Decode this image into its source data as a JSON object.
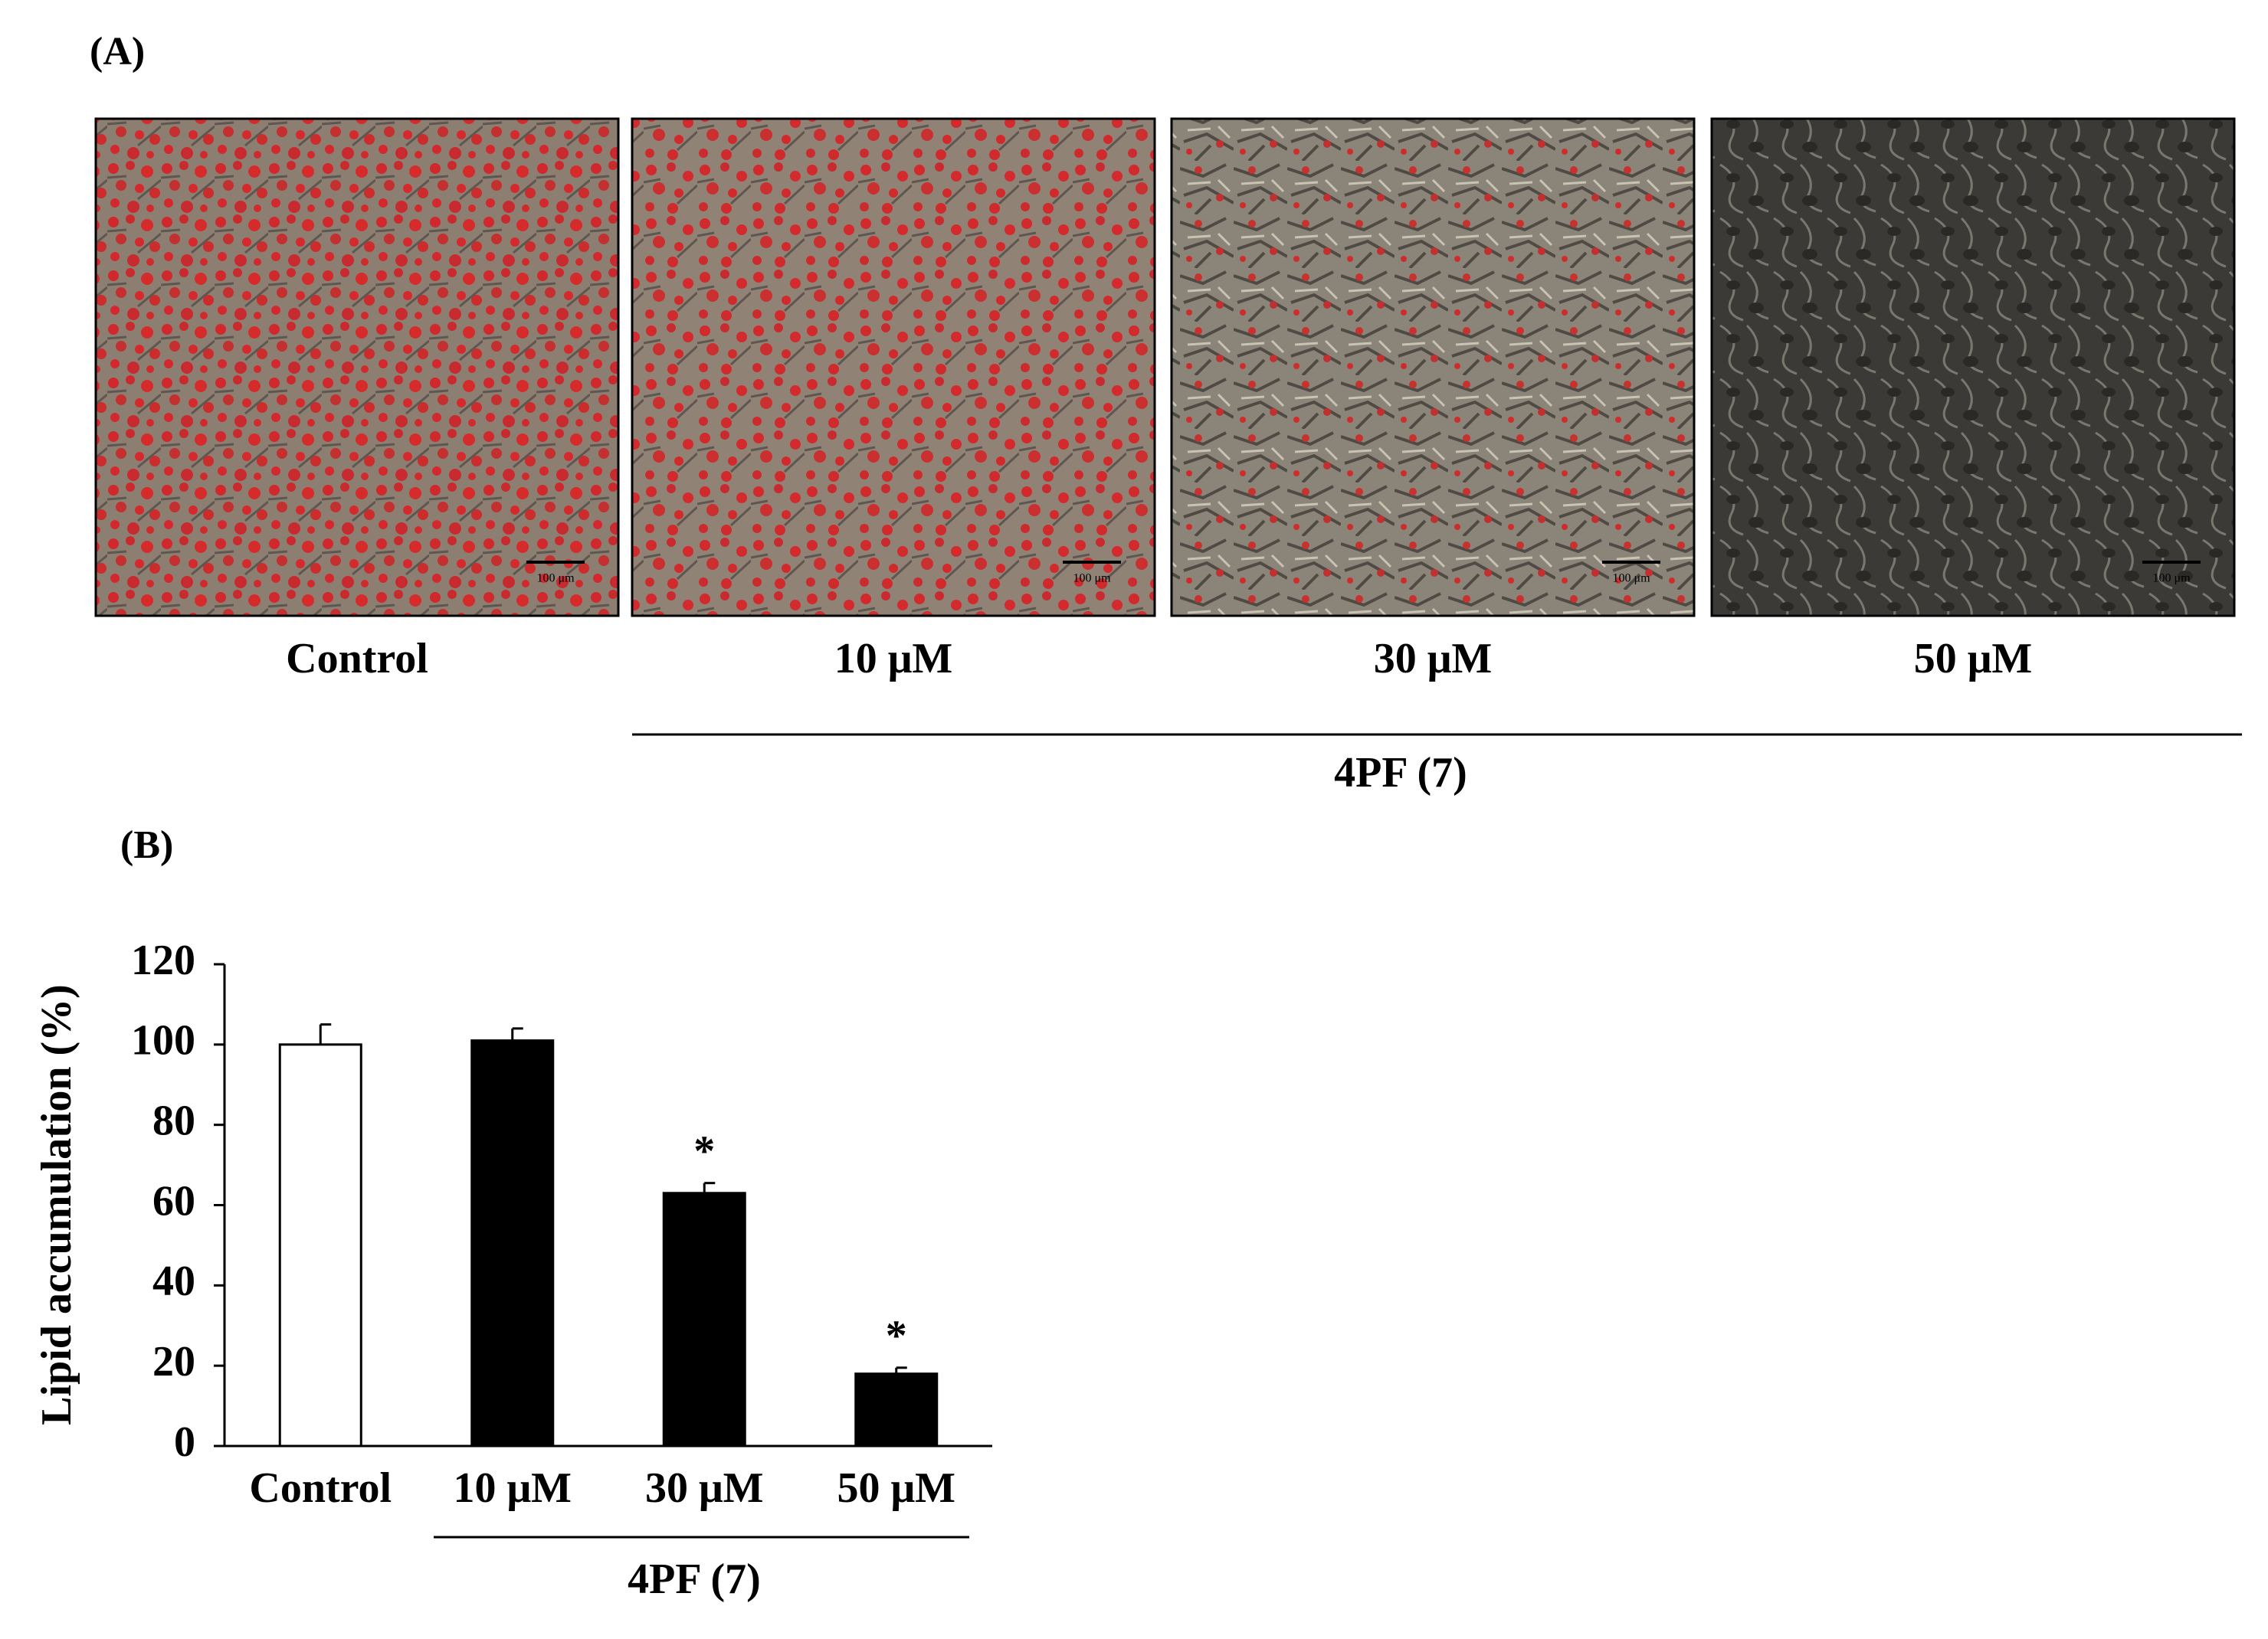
{
  "panel_a": {
    "label": "(A)",
    "images": [
      {
        "label": "Control",
        "scale_bar": "100 μm"
      },
      {
        "label": "10 μM",
        "scale_bar": "100 μm"
      },
      {
        "label": "30 μM",
        "scale_bar": "100 μm"
      },
      {
        "label": "50 μM",
        "scale_bar": "100 μm"
      }
    ],
    "group_label": "4PF (7)"
  },
  "chart_data": {
    "type": "bar",
    "panel_label": "(B)",
    "ylabel": "Lipid accumulation (%)",
    "categories": [
      "Control",
      "10 μM",
      "30 μM",
      "50 μM"
    ],
    "values": [
      100,
      101,
      63,
      18
    ],
    "errors": [
      5,
      3,
      2.5,
      1.5
    ],
    "colors": [
      "#ffffff",
      "#000000",
      "#000000",
      "#000000"
    ],
    "annotations": [
      null,
      null,
      "*",
      "*"
    ],
    "group_label": "4PF (7)",
    "ylim": [
      0,
      120
    ],
    "yticks": [
      0,
      20,
      40,
      60,
      80,
      100,
      120
    ]
  }
}
